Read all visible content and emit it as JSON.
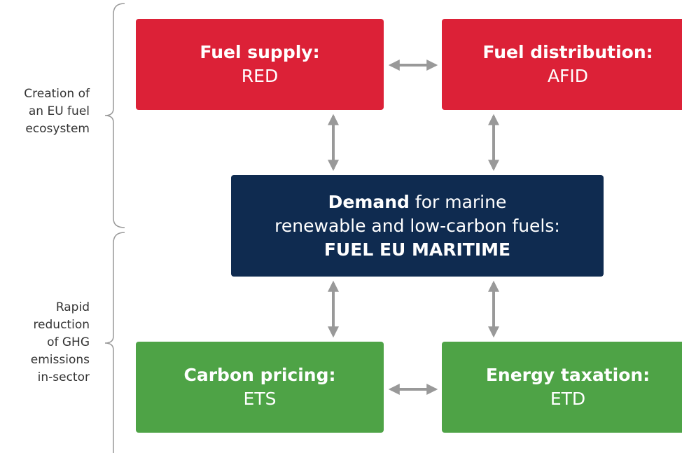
{
  "groups": [
    {
      "label_lines": [
        "Creation of",
        "an EU fuel",
        "ecosystem"
      ]
    },
    {
      "label_lines": [
        "Rapid",
        "reduction",
        "of GHG",
        "emissions",
        "in-sector"
      ]
    }
  ],
  "nodes": [
    {
      "title": "Fuel supply:",
      "subtitle": "RED"
    },
    {
      "title": "Fuel distribution:",
      "subtitle": "AFID"
    },
    {
      "title": "Demand",
      "text_lines": [
        "for marine",
        "renewable and low-carbon fuels:"
      ],
      "subtitle": "FUEL EU MARITIME"
    },
    {
      "title": "Carbon pricing:",
      "subtitle": "ETS"
    },
    {
      "title": "Energy taxation:",
      "subtitle": "ETD"
    }
  ]
}
